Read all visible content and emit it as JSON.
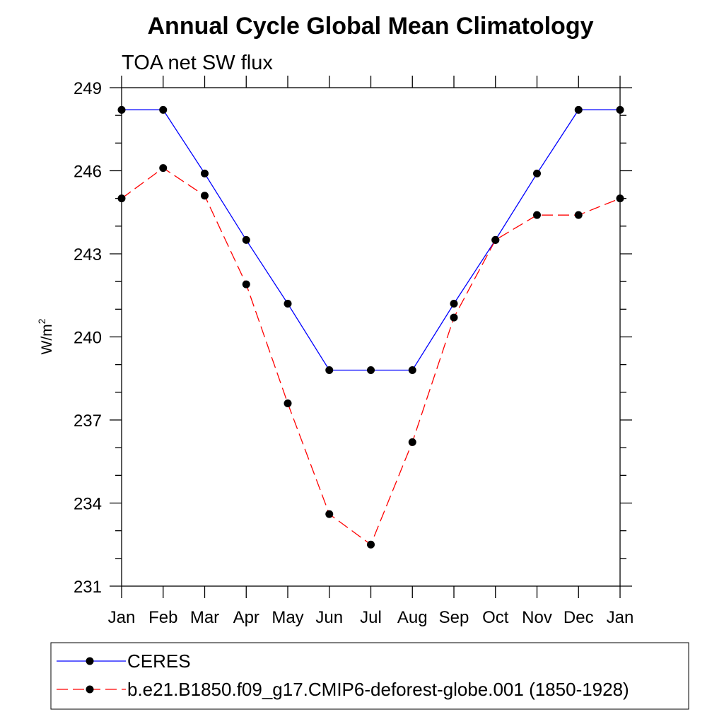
{
  "chart_data": {
    "type": "line",
    "title": "Annual Cycle Global Mean Climatology",
    "subtitle": "TOA net SW flux",
    "ylabel_base": "W/m",
    "ylabel_sup": "2",
    "ylim": [
      231,
      249
    ],
    "yticks": [
      231,
      234,
      237,
      240,
      243,
      246,
      249
    ],
    "categories": [
      "Jan",
      "Feb",
      "Mar",
      "Apr",
      "May",
      "Jun",
      "Jul",
      "Aug",
      "Sep",
      "Oct",
      "Nov",
      "Dec",
      "Jan"
    ],
    "series": [
      {
        "name": "CERES",
        "color": "#0000ff",
        "dash": "solid",
        "values": [
          248.2,
          248.2,
          245.9,
          243.5,
          241.2,
          238.8,
          238.8,
          238.8,
          241.2,
          243.5,
          245.9,
          248.2,
          248.2
        ]
      },
      {
        "name": "b.e21.B1850.f09_g17.CMIP6-deforest-globe.001 (1850-1928)",
        "color": "#ff0000",
        "dash": "dashed",
        "values": [
          245.0,
          246.1,
          245.1,
          241.9,
          237.6,
          233.6,
          232.5,
          236.2,
          240.7,
          243.5,
          244.4,
          244.4,
          245.0
        ]
      }
    ],
    "grid": false,
    "legend_position": "bottom"
  }
}
